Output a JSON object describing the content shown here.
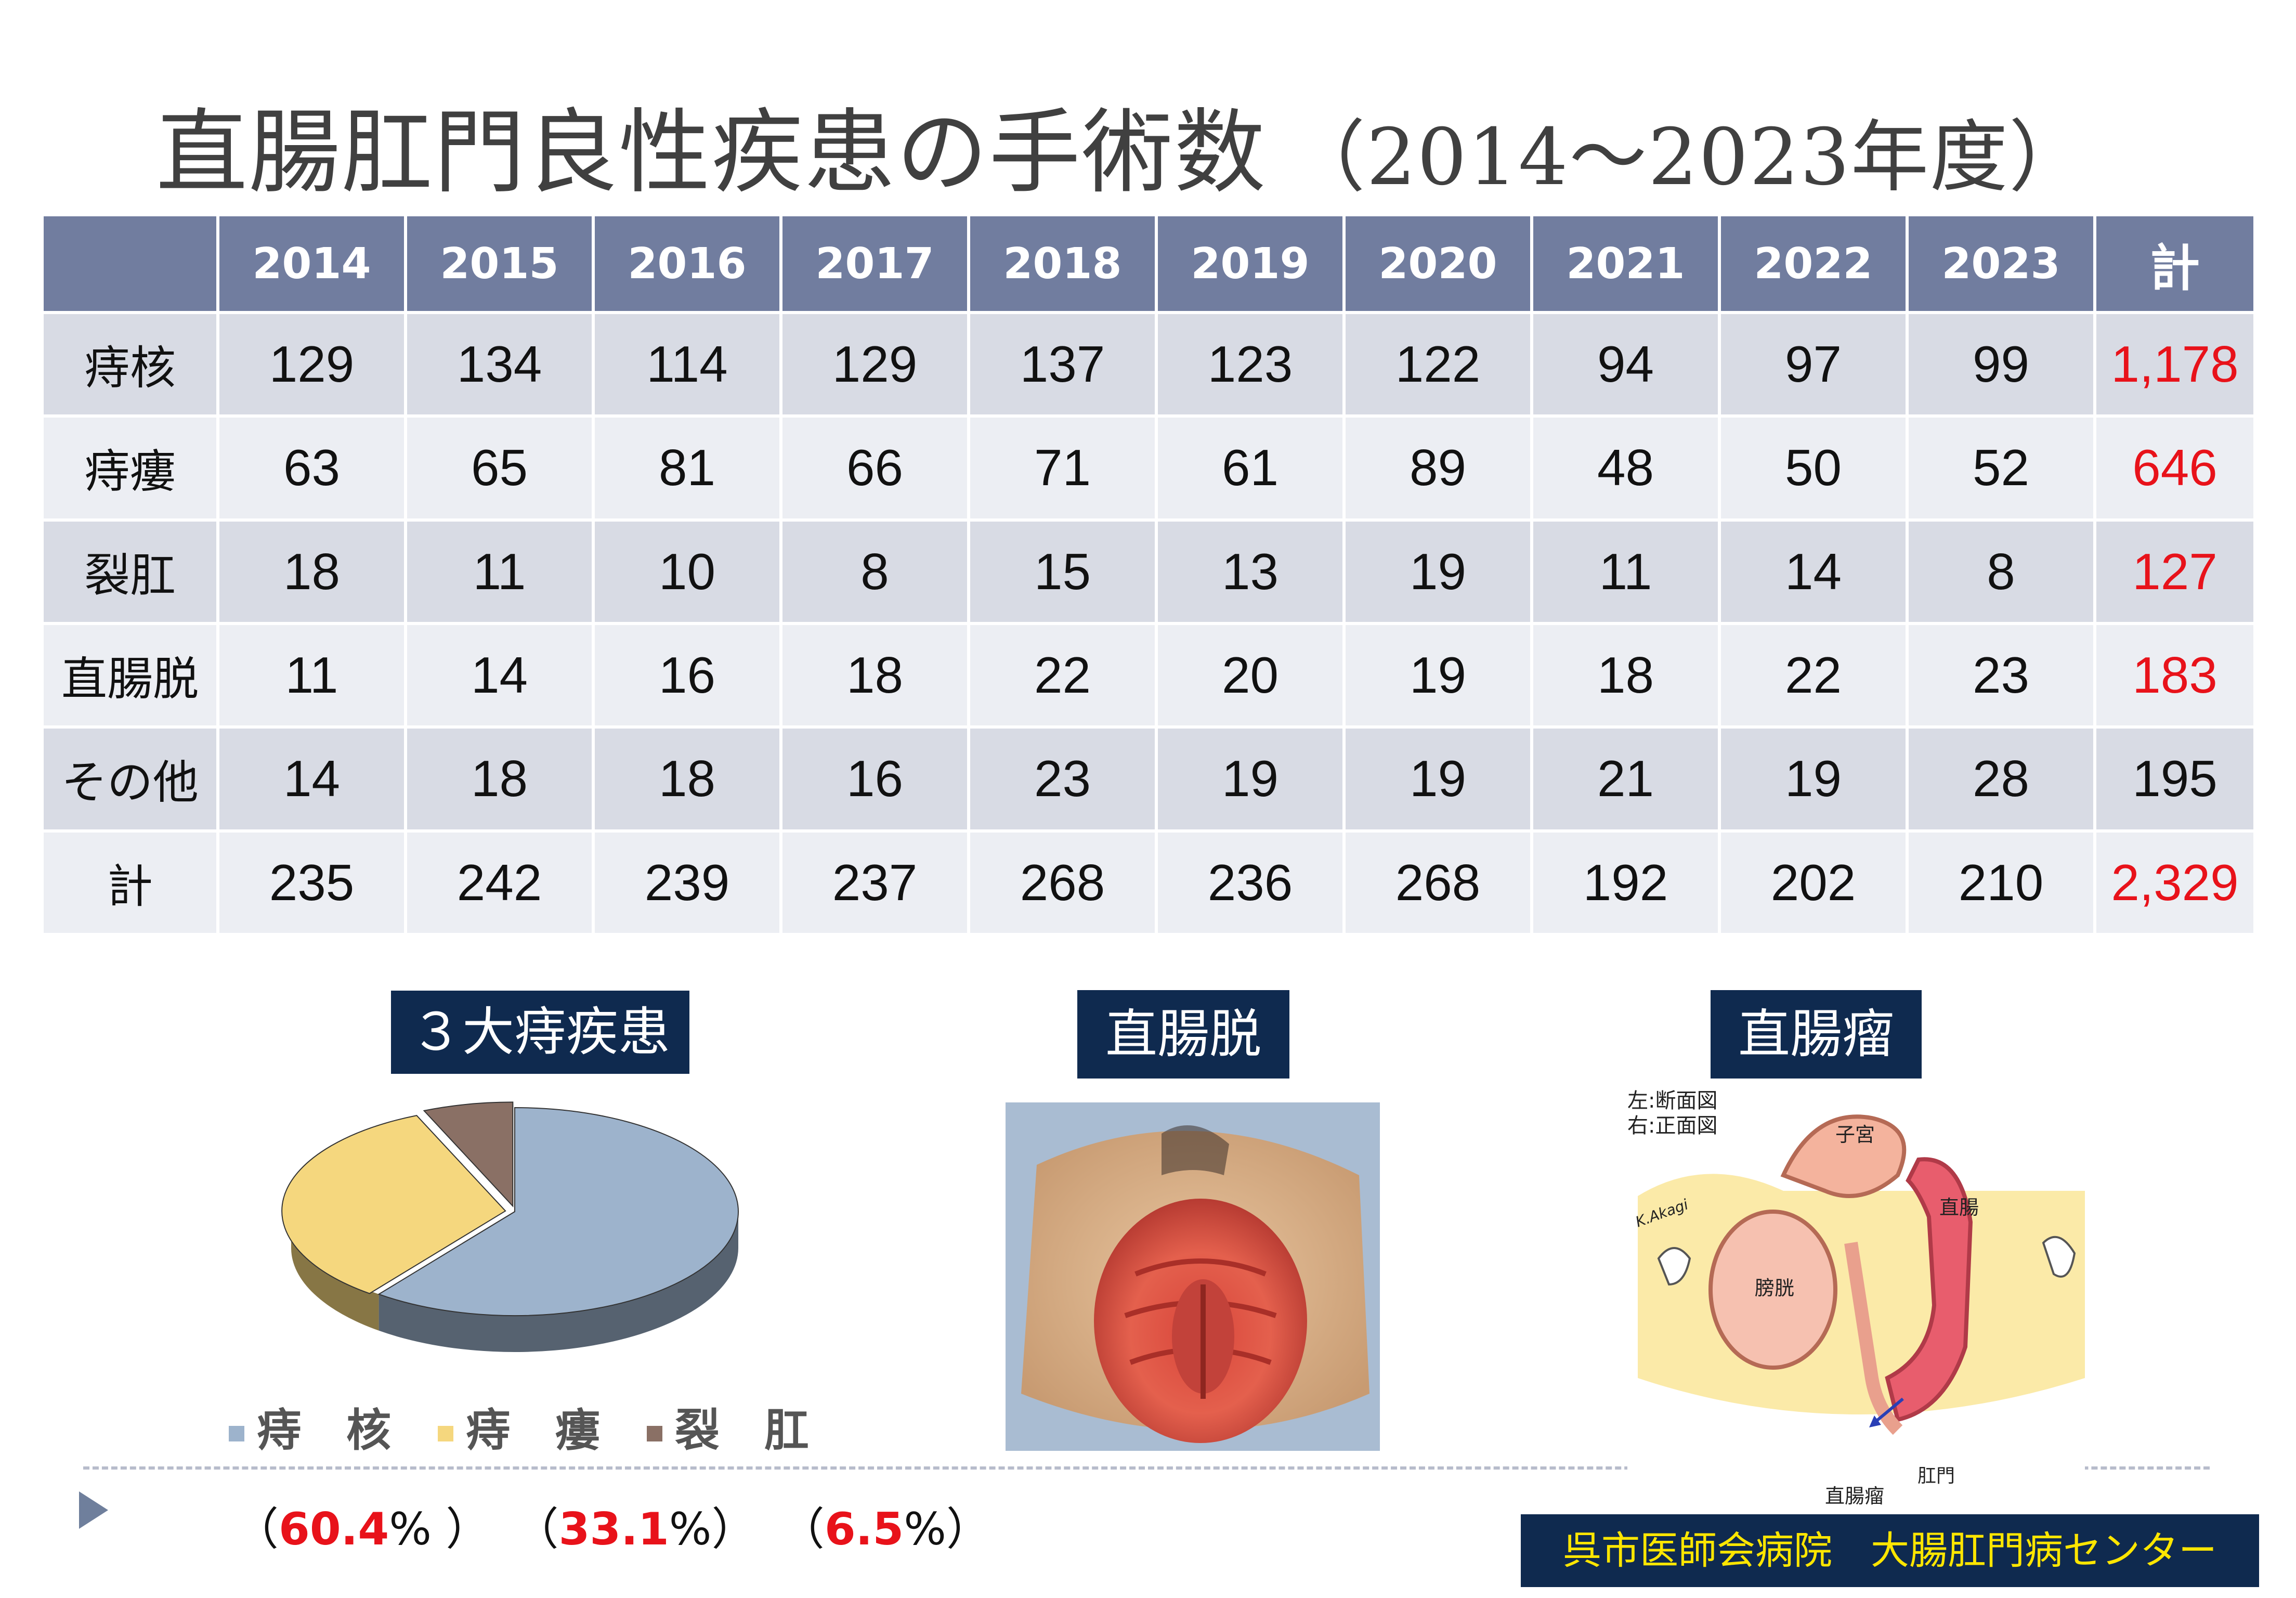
{
  "title": "直腸肛門良性疾患の手術数",
  "title_period": "（2014～2023年度）",
  "table": {
    "corner": "",
    "headers": [
      "2014",
      "2015",
      "2016",
      "2017",
      "2018",
      "2019",
      "2020",
      "2021",
      "2022",
      "2023",
      "計"
    ],
    "rows": [
      {
        "label": "痔核",
        "values": [
          "129",
          "134",
          "114",
          "129",
          "137",
          "123",
          "122",
          "94",
          "97",
          "99"
        ],
        "total": "1,178"
      },
      {
        "label": "痔瘻",
        "values": [
          "63",
          "65",
          "81",
          "66",
          "71",
          "61",
          "89",
          "48",
          "50",
          "52"
        ],
        "total": "646"
      },
      {
        "label": "裂肛",
        "values": [
          "18",
          "11",
          "10",
          "8",
          "15",
          "13",
          "19",
          "11",
          "14",
          "8"
        ],
        "total": "127"
      },
      {
        "label": "直腸脱",
        "values": [
          "11",
          "14",
          "16",
          "18",
          "22",
          "20",
          "19",
          "18",
          "22",
          "23"
        ],
        "total": "183"
      },
      {
        "label": "その他",
        "values": [
          "14",
          "18",
          "18",
          "16",
          "23",
          "19",
          "19",
          "21",
          "19",
          "28"
        ],
        "total": "195"
      },
      {
        "label": "計",
        "values": [
          "235",
          "242",
          "239",
          "237",
          "268",
          "236",
          "268",
          "192",
          "202",
          "210"
        ],
        "total": "2,329"
      }
    ],
    "total_colors": [
      "#e8121a",
      "#e8121a",
      "#e8121a",
      "#e8121a",
      "#111111",
      "#e8121a"
    ]
  },
  "pie_label": "３大痔疾患",
  "chart_data": {
    "type": "pie",
    "title": "３大痔疾患",
    "categories": [
      "痔　核",
      "痔　瘻",
      "裂　肛"
    ],
    "values": [
      60.4,
      33.1,
      6.5
    ],
    "colors": [
      "#9db3cc",
      "#f5d77e",
      "#8a7065"
    ],
    "three_d": true,
    "legend_position": "bottom"
  },
  "percent_labels": {
    "open": "（",
    "close": "）",
    "unit": "%",
    "values": [
      "60.4",
      "33.1",
      "6.5"
    ]
  },
  "prolapse_label": "直腸脱",
  "rectocele_label": "直腸瘤",
  "diagram": {
    "note_left": "左:断面図",
    "note_right": "右:正面図",
    "uterus": "子宮",
    "rectum": "直腸",
    "bladder": "膀胱",
    "anus": "肛門",
    "rectocele": "直腸瘤",
    "signature": "K.Akagi"
  },
  "footer": "呉市医師会病院　大腸肛門病センター"
}
